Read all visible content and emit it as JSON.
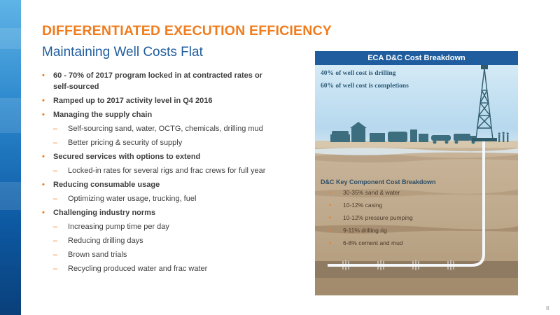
{
  "slide": {
    "title": "DIFFERENTIATED EXECUTION EFFICIENCY",
    "subtitle": "Maintaining Well Costs Flat",
    "page_number": "8"
  },
  "bullets": [
    {
      "level": 1,
      "text": "60 - 70% of 2017 program locked in at contracted rates or self-sourced"
    },
    {
      "level": 1,
      "text": "Ramped up to 2017 activity level in Q4 2016"
    },
    {
      "level": 1,
      "text": "Managing the supply chain"
    },
    {
      "level": 2,
      "text": "Self-sourcing sand, water, OCTG, chemicals, drilling mud"
    },
    {
      "level": 2,
      "text": "Better pricing & security of supply"
    },
    {
      "level": 1,
      "text": "Secured services with options to extend"
    },
    {
      "level": 2,
      "text": "Locked-in rates for several rigs and frac crews for full year"
    },
    {
      "level": 1,
      "text": "Reducing consumable usage"
    },
    {
      "level": 2,
      "text": "Optimizing water usage, trucking, fuel"
    },
    {
      "level": 1,
      "text": "Challenging industry norms"
    },
    {
      "level": 2,
      "text": "Increasing pump time per day"
    },
    {
      "level": 2,
      "text": "Reducing drilling days"
    },
    {
      "level": 2,
      "text": "Brown sand trials"
    },
    {
      "level": 2,
      "text": "Recycling produced water and frac water"
    }
  ],
  "panel": {
    "header": "ECA D&C Cost Breakdown",
    "stats": [
      "40% of well cost is drilling",
      "60% of well cost is completions"
    ],
    "breakdown_title": "D&C Key Component Cost Breakdown",
    "breakdown_items": [
      "30-35% sand & water",
      "10-12% casing",
      "10-12% pressure pumping",
      "9-11% drilling rig",
      "6-8% cement and mud"
    ]
  },
  "colors": {
    "accent_orange": "#f07c1e",
    "title_blue": "#1f5d9e",
    "panel_header": "#1f5d9e",
    "silhouette": "#3d6e80",
    "body_text": "#404040"
  }
}
